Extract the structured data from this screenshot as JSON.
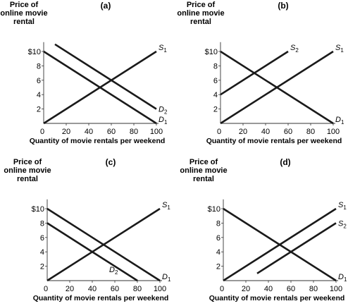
{
  "chart_data": [
    {
      "type": "line",
      "title": "(a)",
      "ylabel_lines": [
        "Price of",
        "online movie",
        "rental"
      ],
      "xlabel": "Quantity of movie rentals per weekend",
      "xlim": [
        0,
        100
      ],
      "ylim": [
        0,
        11
      ],
      "x_ticks": [
        "0",
        "20",
        "40",
        "60",
        "80",
        "100"
      ],
      "y_ticks": [
        "$10",
        "8",
        "6",
        "4",
        "2"
      ],
      "series": [
        {
          "name": "S",
          "sub": "1",
          "points": [
            [
              0,
              0
            ],
            [
              100,
              10
            ]
          ],
          "label_at": "end-top"
        },
        {
          "name": "D",
          "sub": "1",
          "points": [
            [
              0,
              10
            ],
            [
              100,
              0
            ]
          ],
          "label_at": "end-bottom"
        },
        {
          "name": "D",
          "sub": "2",
          "points": [
            [
              10,
              11
            ],
            [
              100,
              2
            ]
          ],
          "label_at": "end-right"
        }
      ]
    },
    {
      "type": "line",
      "title": "(b)",
      "ylabel_lines": [
        "Price of",
        "online movie",
        "rental"
      ],
      "xlabel": "Quantity of movie rentals per weekend",
      "xlim": [
        0,
        100
      ],
      "ylim": [
        0,
        11
      ],
      "x_ticks": [
        "0",
        "20",
        "40",
        "60",
        "80",
        "100"
      ],
      "y_ticks": [
        "$10",
        "8",
        "6",
        "4",
        "2"
      ],
      "series": [
        {
          "name": "S",
          "sub": "1",
          "points": [
            [
              0,
              0
            ],
            [
              100,
              10
            ]
          ],
          "label_at": "end-top"
        },
        {
          "name": "S",
          "sub": "2",
          "points": [
            [
              0,
              4
            ],
            [
              60,
              10
            ]
          ],
          "label_at": "end-top"
        },
        {
          "name": "D",
          "sub": "1",
          "points": [
            [
              0,
              10
            ],
            [
              100,
              0
            ]
          ],
          "label_at": "end-bottom"
        }
      ]
    },
    {
      "type": "line",
      "title": "(c)",
      "ylabel_lines": [
        "Price of",
        "online movie",
        "rental"
      ],
      "xlabel": "Quantity of movie rentals per weekend",
      "xlim": [
        0,
        100
      ],
      "ylim": [
        0,
        11
      ],
      "x_ticks": [
        "0",
        "20",
        "40",
        "60",
        "80",
        "100"
      ],
      "y_ticks": [
        "$10",
        "8",
        "6",
        "4",
        "2"
      ],
      "series": [
        {
          "name": "S",
          "sub": "1",
          "points": [
            [
              0,
              0
            ],
            [
              100,
              10
            ]
          ],
          "label_at": "end-top"
        },
        {
          "name": "D",
          "sub": "1",
          "points": [
            [
              0,
              10
            ],
            [
              100,
              0
            ]
          ],
          "label_at": "end-bottom"
        },
        {
          "name": "D",
          "sub": "2",
          "points": [
            [
              0,
              8
            ],
            [
              80,
              0
            ]
          ],
          "label_at": "inside-left"
        }
      ]
    },
    {
      "type": "line",
      "title": "(d)",
      "ylabel_lines": [
        "Price of",
        "online movie",
        "rental"
      ],
      "xlabel": "Quantity of movie rentals per weekend",
      "xlim": [
        0,
        100
      ],
      "ylim": [
        0,
        11
      ],
      "x_ticks": [
        "0",
        "20",
        "40",
        "60",
        "80",
        "100"
      ],
      "y_ticks": [
        "$10",
        "8",
        "6",
        "4",
        "2"
      ],
      "series": [
        {
          "name": "S",
          "sub": "1",
          "points": [
            [
              0,
              0
            ],
            [
              100,
              10
            ]
          ],
          "label_at": "end-top"
        },
        {
          "name": "S",
          "sub": "2",
          "points": [
            [
              30,
              1
            ],
            [
              100,
              8
            ]
          ],
          "label_at": "end-right"
        },
        {
          "name": "D",
          "sub": "1",
          "points": [
            [
              0,
              10
            ],
            [
              100,
              0
            ]
          ],
          "label_at": "end-bottom"
        }
      ]
    }
  ]
}
